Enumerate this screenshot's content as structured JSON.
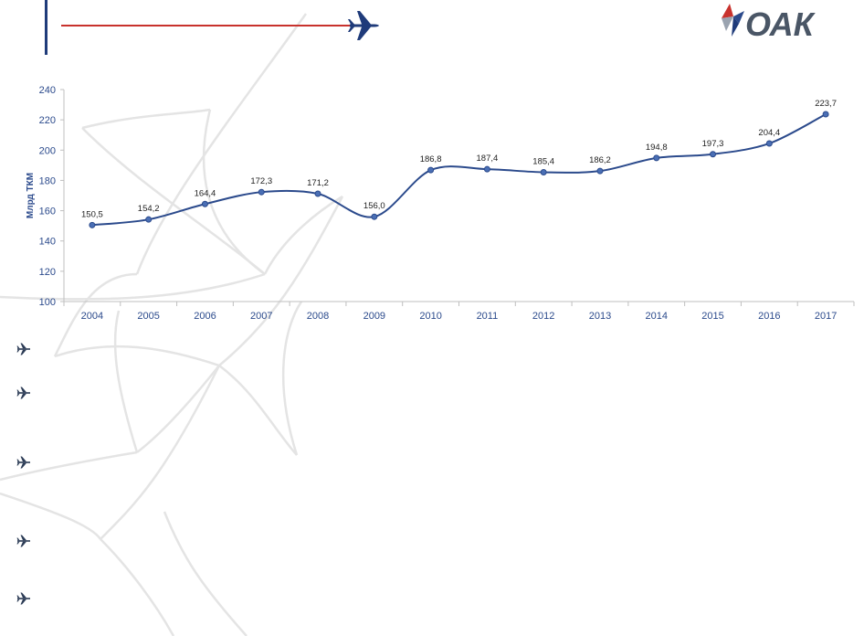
{
  "header": {
    "logo_text": "ОАК"
  },
  "colors": {
    "primary": "#1f3b7a",
    "line": "#2b4a8c",
    "accent": "#c8322d",
    "axis_text": "#2b4a8c",
    "gridline": "#d8d8d8"
  },
  "chart_data": {
    "type": "line",
    "title": "",
    "xlabel": "",
    "ylabel": "Млрд ТКМ",
    "ylim": [
      100,
      240
    ],
    "yticks": [
      100,
      120,
      140,
      160,
      180,
      200,
      220,
      240
    ],
    "categories": [
      "2004",
      "2005",
      "2006",
      "2007",
      "2008",
      "2009",
      "2010",
      "2011",
      "2012",
      "2013",
      "2014",
      "2015",
      "2016",
      "2017"
    ],
    "series": [
      {
        "values": [
          150.5,
          154.2,
          164.4,
          172.3,
          171.2,
          156.0,
          186.8,
          187.4,
          185.4,
          186.2,
          194.8,
          197.3,
          204.4,
          223.7
        ],
        "labels": [
          "150,5",
          "154,2",
          "164,4",
          "172,3",
          "171,2",
          "156,0",
          "186,8",
          "187,4",
          "185,4",
          "186,2",
          "194,8",
          "197,3",
          "204,4",
          "223,7"
        ]
      }
    ],
    "grid": false,
    "legend": "none"
  },
  "bullets": {
    "count": 5,
    "icon": "plane-icon"
  }
}
